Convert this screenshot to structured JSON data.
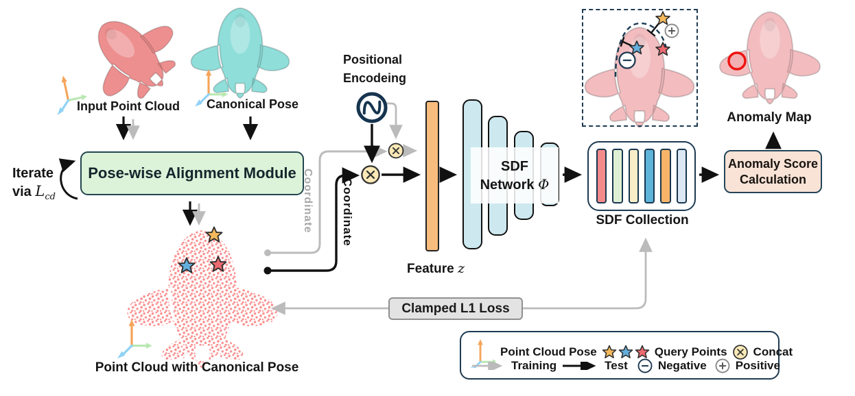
{
  "figure": {
    "inputs": {
      "input_point_cloud": "Input Point Cloud",
      "canonical_pose": "Canonical Pose"
    },
    "module": {
      "label": "Pose-wise Alignment Module",
      "iterate_prefix": "Iterate",
      "iterate_via": "via ",
      "loss_symbol": "L",
      "loss_subscript": "cd"
    },
    "encoding": {
      "line1": "Positional",
      "line2": "Encodeing"
    },
    "coordinate": {
      "train_label": "Coordinate",
      "test_label": "Coordinate"
    },
    "feature": {
      "label": "Feature ",
      "symbol": "z"
    },
    "sdf_network": {
      "line1": "SDF",
      "line2": "Network ",
      "symbol": "Φ"
    },
    "sdf_collection": {
      "label": "SDF Collection"
    },
    "anomaly": {
      "score_line1": "Anomaly Score",
      "score_line2": "Calculation",
      "map_label": "Anomaly Map"
    },
    "point_cloud": {
      "label": "Point Cloud with Canonical Pose"
    },
    "loss": {
      "clamped_label": "Clamped L1 Loss"
    },
    "legend": {
      "pose": "Point Cloud Pose",
      "query": "Query Points",
      "concat": "Concat",
      "training": "Training",
      "test": "Test",
      "negative": "Negative",
      "positive": "Positive"
    },
    "colors": {
      "navy_outline": "#1D3A52",
      "module_green": "#DDF3D9",
      "anomaly_peach": "#F9E3D6",
      "clamped_gray": "#E3E3E3",
      "feature_orange": "#F8BC7E",
      "sdf_layer_blue": "#CDE9EF",
      "collection_bars": [
        "#F48B8B",
        "#DFF0D5",
        "#F9EEC8",
        "#5FB4D9",
        "#F8B569",
        "#DBE7F3"
      ],
      "star_orange": "#F4B95C",
      "star_blue": "#64AEDD",
      "star_red": "#EC6A70",
      "concat_yellow": "#FBE9B7",
      "training_gray": "#BBBBBB",
      "test_black": "#111111",
      "plane_red": "#EE8F8F",
      "plane_teal": "#8FDEDA",
      "plane_pink": "#F3BDC0",
      "point_cloud_red": "#FA8F8F",
      "anomaly_circle_red": "#EE1411"
    }
  }
}
